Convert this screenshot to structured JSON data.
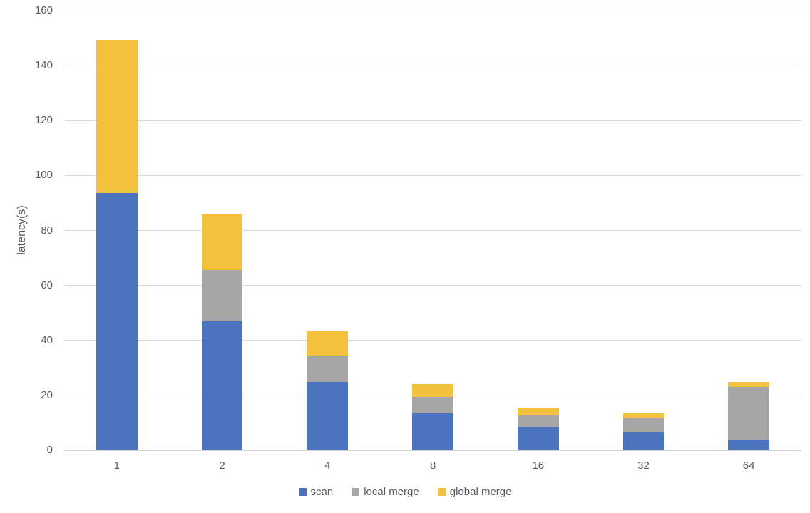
{
  "chart_data": {
    "type": "bar",
    "stacked": true,
    "title": "",
    "xlabel": "",
    "ylabel": "latency(s)",
    "categories": [
      "1",
      "2",
      "4",
      "8",
      "16",
      "32",
      "64"
    ],
    "series": [
      {
        "name": "scan",
        "color": "#4B73BE",
        "values": [
          93.5,
          47,
          25,
          13.5,
          8.3,
          6.5,
          4
        ]
      },
      {
        "name": "local merge",
        "color": "#A6A6A6",
        "values": [
          0,
          18.5,
          9.5,
          6,
          4.3,
          5.3,
          19
        ]
      },
      {
        "name": "global merge",
        "color": "#F2C23E",
        "values": [
          56,
          20.5,
          9,
          4.5,
          3,
          1.8,
          1.8
        ]
      }
    ],
    "totals": [
      149.5,
      86,
      43.5,
      24,
      15.6,
      13.6,
      24.8
    ],
    "ylim": [
      0,
      160
    ],
    "ytick_interval": 20,
    "yticks": [
      0,
      20,
      40,
      60,
      80,
      100,
      120,
      140,
      160
    ],
    "grid": true,
    "legend_position": "bottom",
    "bar_width_ratio": 0.39,
    "colors": {
      "gridline": "#D9D9D9",
      "axis_text": "#595959",
      "background": "#FFFFFF"
    }
  }
}
